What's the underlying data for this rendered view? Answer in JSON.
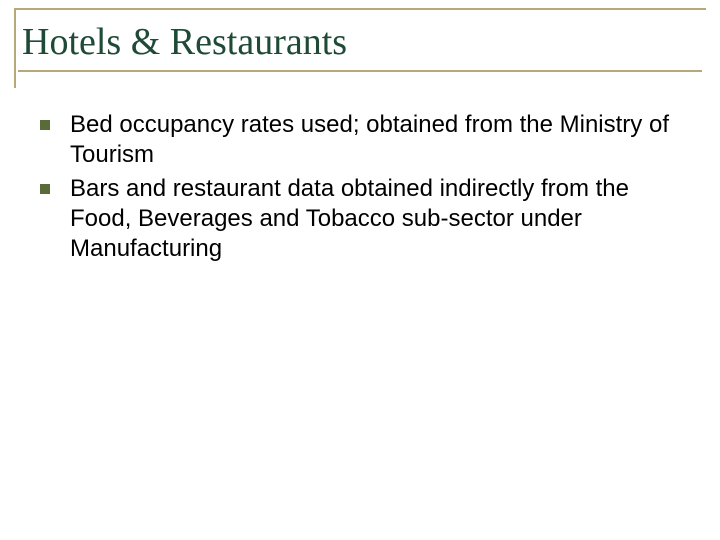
{
  "slide": {
    "title": "Hotels & Restaurants",
    "bullets": [
      "Bed occupancy rates used; obtained from the Ministry of Tourism",
      "Bars and restaurant data obtained indirectly from the Food, Beverages and Tobacco sub-sector under Manufacturing"
    ]
  },
  "style": {
    "frame_color": "#b8a878",
    "title_color": "#1f4a36",
    "bullet_color": "#5a6b3a",
    "text_color": "#000000",
    "background_color": "#ffffff",
    "title_fontsize": 38,
    "body_fontsize": 24
  }
}
